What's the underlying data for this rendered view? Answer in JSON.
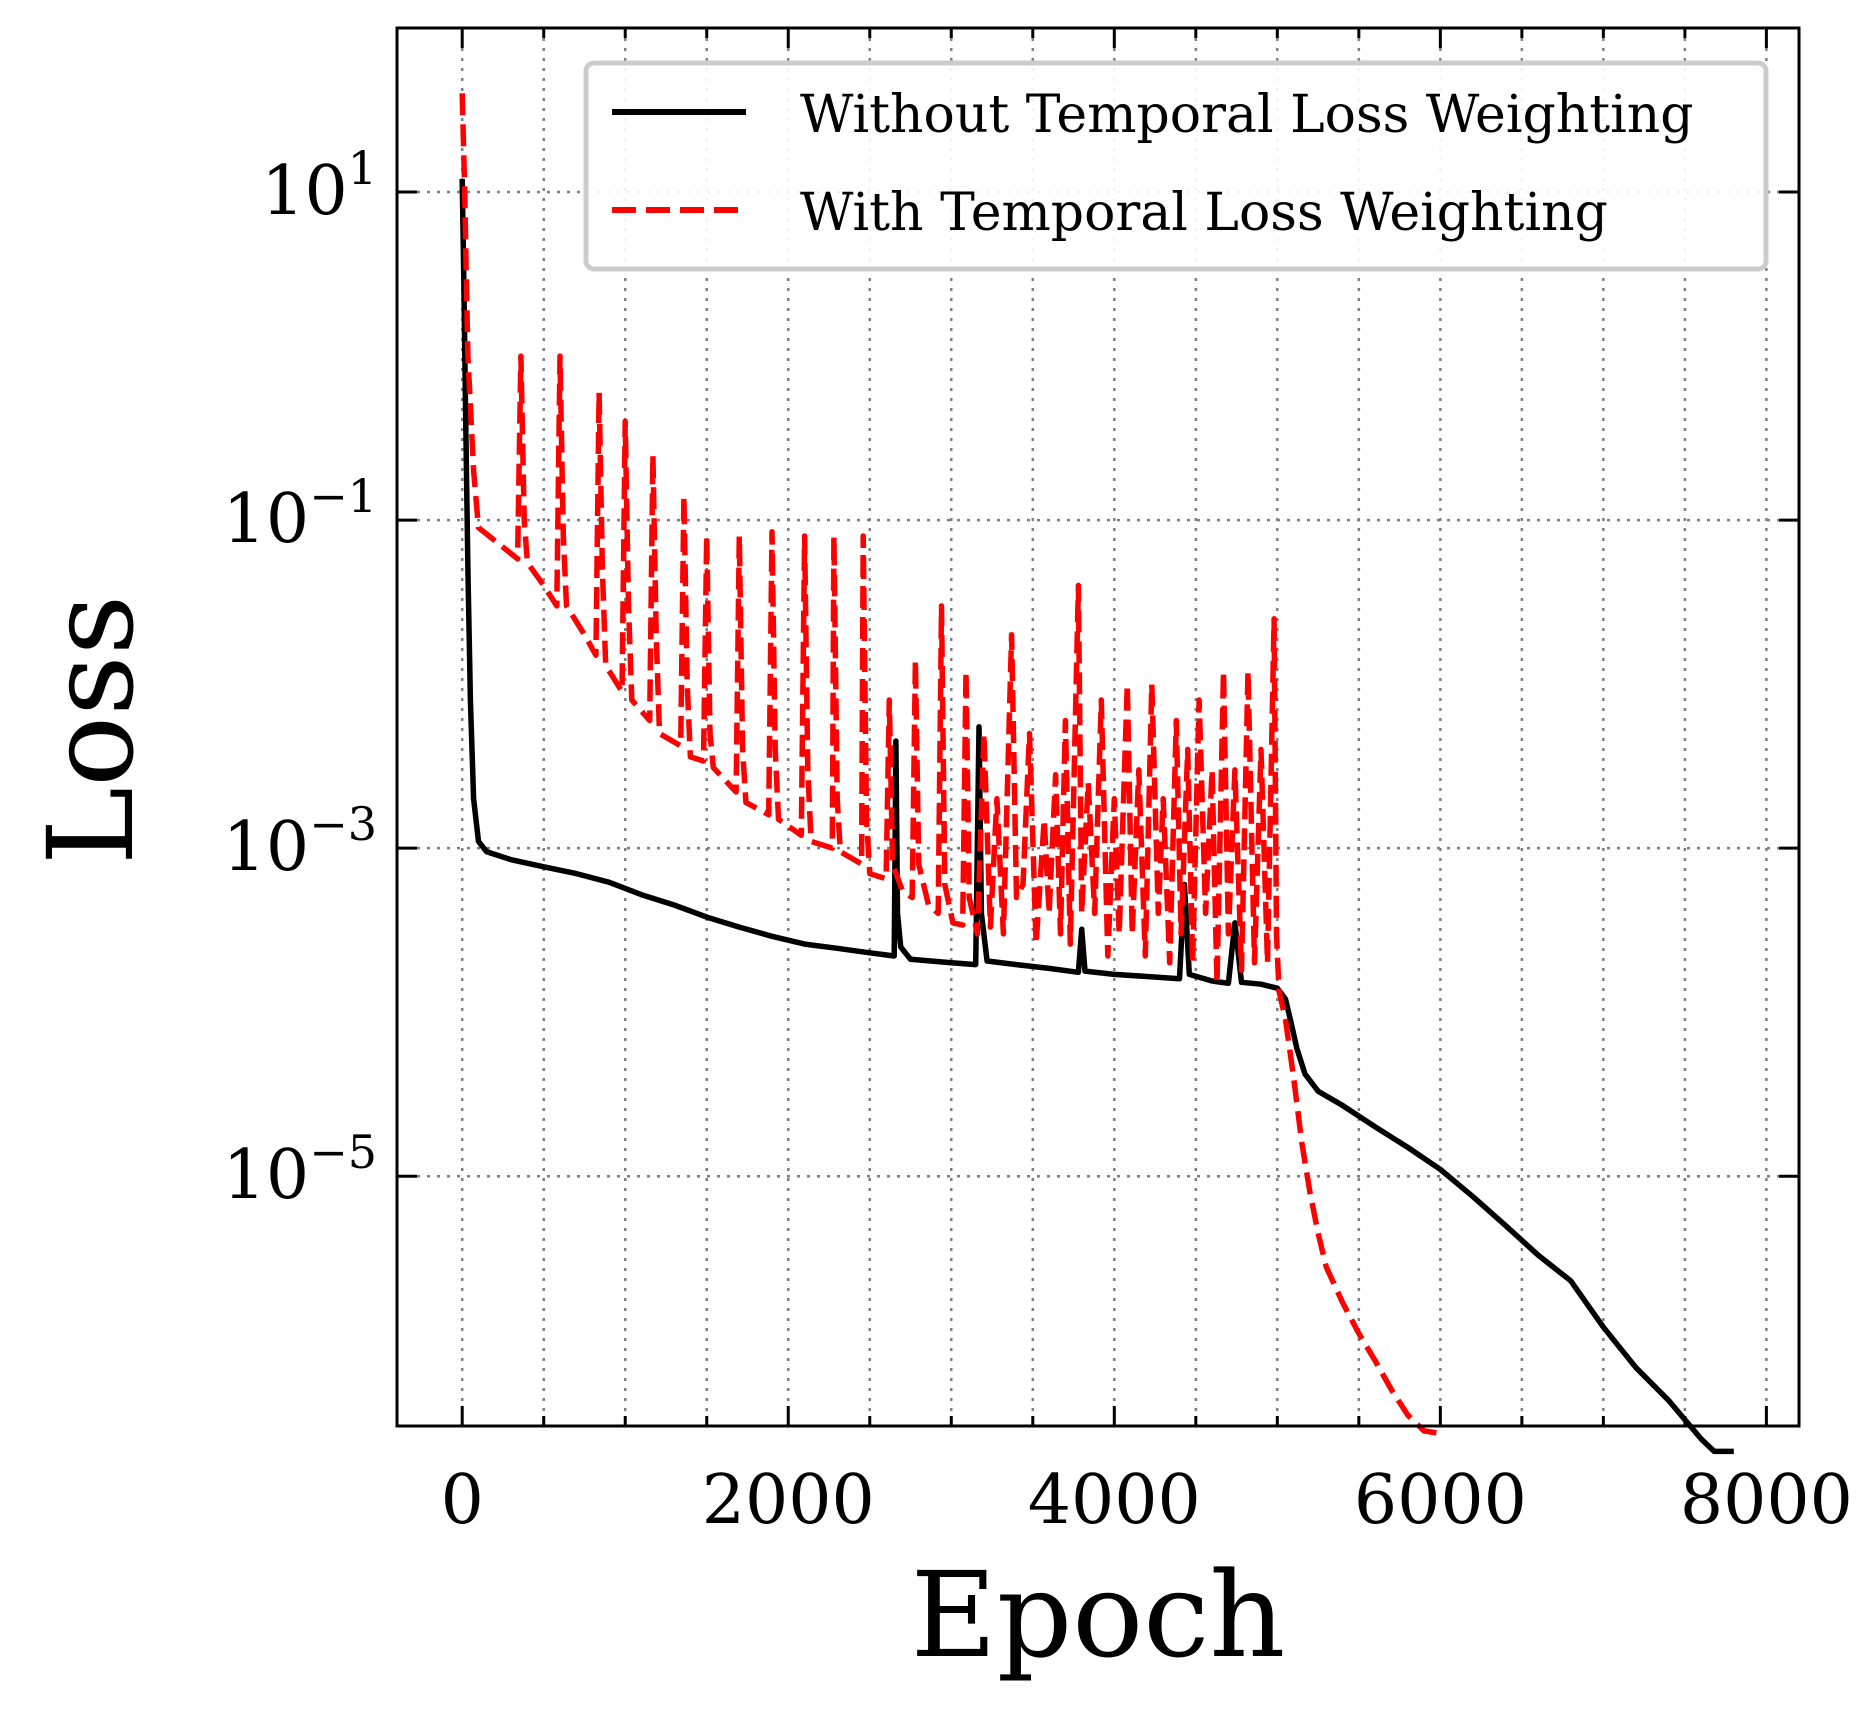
{
  "chart_data": {
    "type": "line",
    "xlabel": "Epoch",
    "ylabel": "Loss",
    "x_ticks": [
      0,
      2000,
      4000,
      6000,
      8000
    ],
    "x_tick_labels": [
      "0",
      "2000",
      "4000",
      "6000",
      "8000"
    ],
    "x_minor_ticks": [
      500,
      1000,
      1500,
      2500,
      3000,
      3500,
      4500,
      5000,
      5500,
      6500,
      7000,
      7500
    ],
    "y_ticks": [
      10,
      0.1,
      0.001,
      1e-05
    ],
    "y_tick_labels": [
      {
        "base": "10",
        "exp": "1"
      },
      {
        "base": "10",
        "exp": "−1"
      },
      {
        "base": "10",
        "exp": "−3"
      },
      {
        "base": "10",
        "exp": "−5"
      }
    ],
    "xlim": [
      -400,
      8200
    ],
    "ylim": [
      3e-07,
      100
    ],
    "y_scale": "log",
    "grid": true,
    "legend_position": "top-right",
    "series": [
      {
        "name": "Without Temporal Loss Weighting",
        "color": "#000000",
        "line_style": "solid",
        "points": [
          [
            0,
            12
          ],
          [
            10,
            3
          ],
          [
            20,
            0.5
          ],
          [
            35,
            0.05
          ],
          [
            50,
            0.008
          ],
          [
            70,
            0.002
          ],
          [
            100,
            0.0011
          ],
          [
            150,
            0.00095
          ],
          [
            300,
            0.00085
          ],
          [
            500,
            0.00077
          ],
          [
            700,
            0.0007
          ],
          [
            900,
            0.00062
          ],
          [
            1100,
            0.00052
          ],
          [
            1300,
            0.00045
          ],
          [
            1500,
            0.00038
          ],
          [
            1700,
            0.00033
          ],
          [
            1900,
            0.00029
          ],
          [
            2100,
            0.00026
          ],
          [
            2300,
            0.000245
          ],
          [
            2500,
            0.00023
          ],
          [
            2650,
            0.00022
          ],
          [
            2660,
            0.0045
          ],
          [
            2670,
            0.0004
          ],
          [
            2690,
            0.00025
          ],
          [
            2750,
            0.00021
          ],
          [
            3000,
            0.0002
          ],
          [
            3150,
            0.000195
          ],
          [
            3170,
            0.0055
          ],
          [
            3185,
            0.0004
          ],
          [
            3220,
            0.000205
          ],
          [
            3400,
            0.000195
          ],
          [
            3600,
            0.000185
          ],
          [
            3780,
            0.000175
          ],
          [
            3800,
            0.00032
          ],
          [
            3820,
            0.000178
          ],
          [
            4000,
            0.00017
          ],
          [
            4200,
            0.000165
          ],
          [
            4400,
            0.00016
          ],
          [
            4430,
            0.0006
          ],
          [
            4460,
            0.00017
          ],
          [
            4600,
            0.000155
          ],
          [
            4700,
            0.00015
          ],
          [
            4740,
            0.00035
          ],
          [
            4780,
            0.000152
          ],
          [
            4900,
            0.000148
          ],
          [
            5000,
            0.00014
          ],
          [
            5050,
            0.00012
          ],
          [
            5080,
            9e-05
          ],
          [
            5120,
            6e-05
          ],
          [
            5170,
            4.2e-05
          ],
          [
            5250,
            3.3e-05
          ],
          [
            5400,
            2.7e-05
          ],
          [
            5600,
            2e-05
          ],
          [
            5800,
            1.5e-05
          ],
          [
            6000,
            1.1e-05
          ],
          [
            6200,
            7.5e-06
          ],
          [
            6400,
            5e-06
          ],
          [
            6600,
            3.3e-06
          ],
          [
            6800,
            2.3e-06
          ],
          [
            7000,
            1.2e-06
          ],
          [
            7200,
            6.8e-07
          ],
          [
            7400,
            4.3e-07
          ],
          [
            7600,
            2.5e-07
          ],
          [
            7680,
            2.1e-07
          ],
          [
            7800,
            2.1e-07
          ]
        ]
      },
      {
        "name": "With Temporal Loss Weighting",
        "color": "#ff0000",
        "line_style": "dashed",
        "points": [
          [
            0,
            40
          ],
          [
            15,
            10
          ],
          [
            25,
            3
          ],
          [
            35,
            1
          ],
          [
            50,
            0.5
          ],
          [
            70,
            0.2
          ],
          [
            100,
            0.09
          ],
          [
            200,
            0.075
          ],
          [
            340,
            0.058
          ],
          [
            360,
            1
          ],
          [
            380,
            0.1
          ],
          [
            400,
            0.055
          ],
          [
            500,
            0.04
          ],
          [
            580,
            0.03
          ],
          [
            600,
            1
          ],
          [
            620,
            0.08
          ],
          [
            640,
            0.03
          ],
          [
            750,
            0.02
          ],
          [
            820,
            0.015
          ],
          [
            840,
            0.6
          ],
          [
            860,
            0.05
          ],
          [
            880,
            0.013
          ],
          [
            980,
            0.009
          ],
          [
            1000,
            0.4
          ],
          [
            1020,
            0.03
          ],
          [
            1040,
            0.008
          ],
          [
            1150,
            0.006
          ],
          [
            1170,
            0.25
          ],
          [
            1190,
            0.02
          ],
          [
            1210,
            0.005
          ],
          [
            1340,
            0.0042
          ],
          [
            1360,
            0.14
          ],
          [
            1380,
            0.01
          ],
          [
            1400,
            0.0036
          ],
          [
            1480,
            0.0034
          ],
          [
            1500,
            0.08
          ],
          [
            1520,
            0.005
          ],
          [
            1540,
            0.0031
          ],
          [
            1680,
            0.0022
          ],
          [
            1700,
            0.08
          ],
          [
            1720,
            0.004
          ],
          [
            1740,
            0.0019
          ],
          [
            1880,
            0.0016
          ],
          [
            1900,
            0.085
          ],
          [
            1920,
            0.004
          ],
          [
            1940,
            0.0015
          ],
          [
            2080,
            0.0012
          ],
          [
            2100,
            0.08
          ],
          [
            2120,
            0.003
          ],
          [
            2140,
            0.0011
          ],
          [
            2270,
            0.001
          ],
          [
            2280,
            0.08
          ],
          [
            2300,
            0.002
          ],
          [
            2320,
            0.00095
          ],
          [
            2450,
            0.0008
          ],
          [
            2460,
            0.08
          ],
          [
            2480,
            0.0015
          ],
          [
            2500,
            0.0007
          ],
          [
            2600,
            0.00065
          ],
          [
            2620,
            0.008
          ],
          [
            2640,
            0.0008
          ],
          [
            2700,
            0.00055
          ],
          [
            2760,
            0.0005
          ],
          [
            2780,
            0.014
          ],
          [
            2800,
            0.0008
          ],
          [
            2860,
            0.00045
          ],
          [
            2920,
            0.0004
          ],
          [
            2940,
            0.03
          ],
          [
            2960,
            0.0006
          ],
          [
            3010,
            0.00035
          ],
          [
            3070,
            0.00034
          ],
          [
            3090,
            0.012
          ],
          [
            3110,
            0.0005
          ],
          [
            3160,
            0.0003
          ],
          [
            3200,
            0.005
          ],
          [
            3240,
            0.00033
          ],
          [
            3280,
            0.002
          ],
          [
            3320,
            0.0003
          ],
          [
            3370,
            0.02
          ],
          [
            3400,
            0.0005
          ],
          [
            3440,
            0.0006
          ],
          [
            3480,
            0.005
          ],
          [
            3520,
            0.00026
          ],
          [
            3570,
            0.0015
          ],
          [
            3600,
            0.0004
          ],
          [
            3640,
            0.0028
          ],
          [
            3670,
            0.0003
          ],
          [
            3700,
            0.006
          ],
          [
            3730,
            0.00026
          ],
          [
            3780,
            0.04
          ],
          [
            3800,
            0.0004
          ],
          [
            3840,
            0.0025
          ],
          [
            3880,
            0.0004
          ],
          [
            3920,
            0.008
          ],
          [
            3960,
            0.00022
          ],
          [
            4000,
            0.002
          ],
          [
            4030,
            0.0003
          ],
          [
            4080,
            0.01
          ],
          [
            4110,
            0.0003
          ],
          [
            4150,
            0.003
          ],
          [
            4190,
            0.00022
          ],
          [
            4230,
            0.01
          ],
          [
            4270,
            0.0004
          ],
          [
            4300,
            0.002
          ],
          [
            4340,
            0.0002
          ],
          [
            4380,
            0.006
          ],
          [
            4410,
            0.0003
          ],
          [
            4450,
            0.004
          ],
          [
            4480,
            0.0002
          ],
          [
            4520,
            0.008
          ],
          [
            4560,
            0.0004
          ],
          [
            4600,
            0.003
          ],
          [
            4630,
            0.00015
          ],
          [
            4670,
            0.012
          ],
          [
            4700,
            0.0003
          ],
          [
            4740,
            0.003
          ],
          [
            4780,
            0.00018
          ],
          [
            4820,
            0.012
          ],
          [
            4860,
            0.0002
          ],
          [
            4900,
            0.004
          ],
          [
            4940,
            0.0002
          ],
          [
            4980,
            0.025
          ],
          [
            4995,
            0.0003
          ],
          [
            5010,
            0.000135
          ],
          [
            5050,
            9e-05
          ],
          [
            5100,
            4e-05
          ],
          [
            5150,
            1.6e-05
          ],
          [
            5200,
            8e-06
          ],
          [
            5250,
            4.5e-06
          ],
          [
            5300,
            2.8e-06
          ],
          [
            5400,
            1.7e-06
          ],
          [
            5500,
            1.1e-06
          ],
          [
            5600,
            7.5e-07
          ],
          [
            5700,
            5e-07
          ],
          [
            5800,
            3.5e-07
          ],
          [
            5900,
            2.8e-07
          ],
          [
            6000,
            2.7e-07
          ]
        ]
      }
    ]
  }
}
